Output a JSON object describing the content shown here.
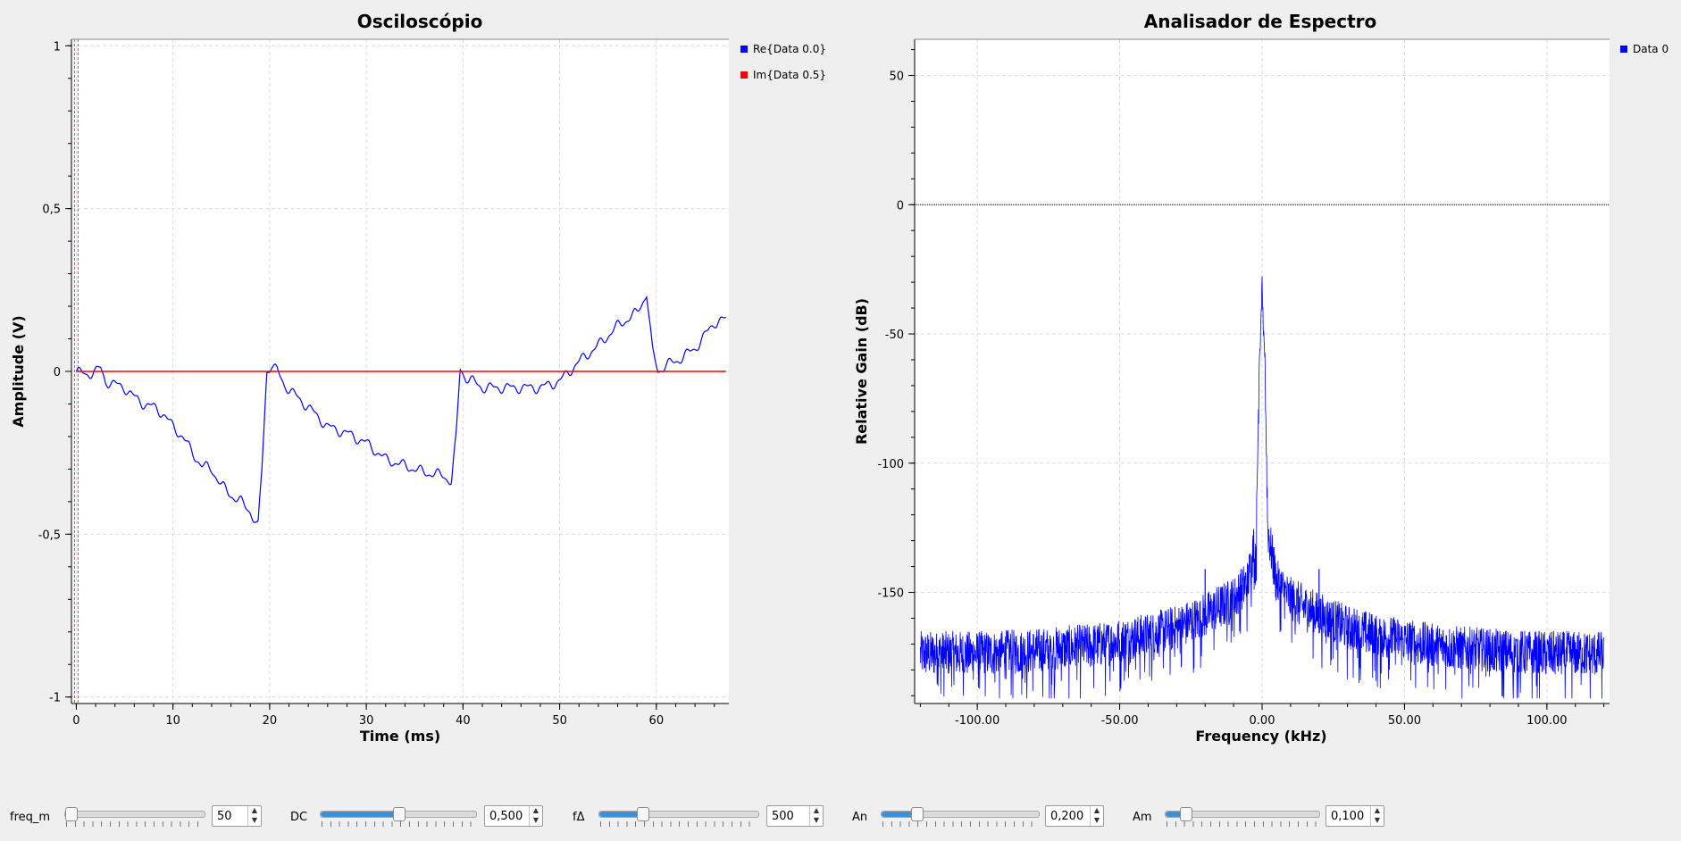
{
  "osc": {
    "title": "Osciloscópio",
    "xlabel": "Time (ms)",
    "ylabel": "Amplitude (V)",
    "legend": [
      "Re{Data 0.0}",
      "Im{Data 0.5}"
    ]
  },
  "spec": {
    "title": "Analisador de Espectro",
    "xlabel": "Frequency (kHz)",
    "ylabel": "Relative Gain (dB)",
    "legend": [
      "Data 0"
    ]
  },
  "chart_data": [
    {
      "type": "line",
      "title": "Osciloscópio",
      "xlabel": "Time (ms)",
      "ylabel": "Amplitude (V)",
      "xlim": [
        -0.5,
        67.5
      ],
      "ylim": [
        -1.02,
        1.02
      ],
      "x_ticks": [
        0,
        10,
        20,
        30,
        40,
        50,
        60
      ],
      "x_tick_labels": [
        "0",
        "10",
        "20",
        "30",
        "40",
        "50",
        "60"
      ],
      "y_ticks": [
        1,
        0.5,
        0,
        -0.5,
        -1
      ],
      "y_tick_labels": [
        "1",
        "0,5",
        "0",
        "-0,5",
        "-1"
      ],
      "grid": true,
      "legend_position": "top-right",
      "series": [
        {
          "name": "Re{Data 0.0}",
          "color": "#0000ff",
          "x": [
            0,
            1,
            2,
            2.5,
            3,
            4,
            5,
            6,
            7,
            8,
            9,
            10,
            11,
            12,
            13,
            14,
            15,
            16,
            17,
            18,
            18.8,
            19.2,
            19.7,
            20.2,
            20.8,
            21.5,
            22.5,
            24,
            26,
            28,
            30,
            32,
            34,
            36,
            38,
            38.8,
            39.3,
            39.7,
            40.3,
            41,
            42,
            44,
            46,
            48,
            50,
            52,
            54,
            56,
            58,
            59,
            59.6,
            60.2,
            61,
            62,
            64,
            66,
            67.2
          ],
          "y": [
            0,
            -0.01,
            0.0,
            0.01,
            -0.03,
            -0.04,
            -0.05,
            -0.08,
            -0.1,
            -0.11,
            -0.13,
            -0.17,
            -0.2,
            -0.25,
            -0.29,
            -0.3,
            -0.35,
            -0.38,
            -0.4,
            -0.43,
            -0.48,
            -0.3,
            0.0,
            0.02,
            0.0,
            -0.04,
            -0.07,
            -0.11,
            -0.17,
            -0.19,
            -0.22,
            -0.27,
            -0.29,
            -0.31,
            -0.32,
            -0.34,
            -0.2,
            0.01,
            -0.02,
            -0.03,
            -0.05,
            -0.05,
            -0.05,
            -0.05,
            -0.03,
            0.03,
            0.08,
            0.14,
            0.18,
            0.24,
            0.06,
            0.0,
            0.02,
            0.03,
            0.07,
            0.15,
            0.16
          ]
        },
        {
          "name": "Im{Data 0.5}",
          "color": "#ff0000",
          "x": [
            0,
            67.2
          ],
          "y": [
            0,
            0
          ]
        }
      ]
    },
    {
      "type": "line",
      "title": "Analisador de Espectro",
      "xlabel": "Frequency (kHz)",
      "ylabel": "Relative Gain (dB)",
      "xlim": [
        -122,
        122
      ],
      "ylim": [
        -193,
        64
      ],
      "x_ticks": [
        -100,
        -50,
        0,
        50,
        100
      ],
      "x_tick_labels": [
        "-100.00",
        "-50.00",
        "0.00",
        "50.00",
        "100.00"
      ],
      "y_ticks": [
        50,
        0,
        -50,
        -100,
        -150
      ],
      "y_tick_labels": [
        "50",
        "0",
        "-50",
        "-100",
        "-150"
      ],
      "grid": true,
      "legend_position": "top-right",
      "reference_line_db": 0,
      "series": [
        {
          "name": "Data 0",
          "color": "#0000ff",
          "noise_floor_db": -173,
          "spur_x": [
            -20,
            20
          ],
          "spur_y": [
            -141,
            -141
          ],
          "x": [
            -120,
            -100,
            -80,
            -60,
            -40,
            -30,
            -20,
            -10,
            -5,
            -2,
            -1,
            -0.5,
            0,
            0.5,
            1,
            2,
            5,
            10,
            20,
            30,
            40,
            60,
            80,
            100,
            120
          ],
          "y": [
            -173,
            -173,
            -172,
            -170,
            -166,
            -163,
            -158,
            -152,
            -145,
            -125,
            -60,
            -50,
            -30,
            -50,
            -60,
            -125,
            -145,
            -152,
            -158,
            -163,
            -166,
            -170,
            -172,
            -173,
            -173
          ]
        }
      ]
    }
  ],
  "controls": [
    {
      "label": "freq_m",
      "value": "50",
      "fraction": 0.0
    },
    {
      "label": "DC",
      "value": "0,500",
      "fraction": 0.5
    },
    {
      "label": "fΔ",
      "value": "500",
      "fraction": 0.25
    },
    {
      "label": "An",
      "value": "0,200",
      "fraction": 0.2
    },
    {
      "label": "Am",
      "value": "0,100",
      "fraction": 0.1
    }
  ]
}
